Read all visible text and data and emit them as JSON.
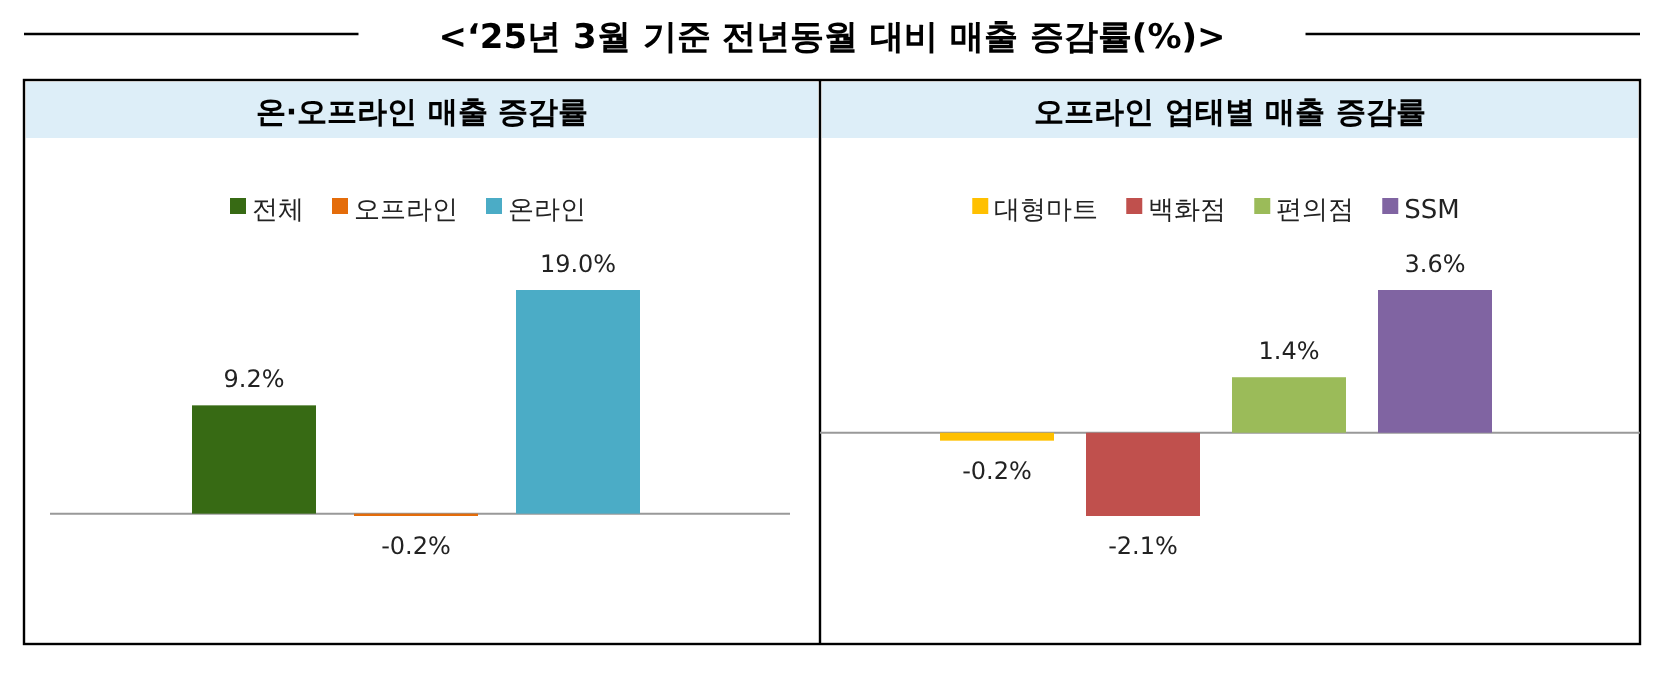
{
  "chart_data": [
    {
      "type": "other",
      "title": "<‘25년 3월 기준 전년동월 대비 매출 증감률(%)>"
    },
    {
      "type": "bar",
      "title": "온·오프라인 매출 증감률",
      "categories": [
        null
      ],
      "legend": "top",
      "series": [
        {
          "name": "전체",
          "color": "#376a14",
          "values": [
            9.2
          ],
          "value_labels": [
            "9.2%"
          ]
        },
        {
          "name": "오프라인",
          "color": "#e46c0a",
          "values": [
            -0.2
          ],
          "value_labels": [
            "-0.2%"
          ]
        },
        {
          "name": "온라인",
          "color": "#4bacc6",
          "values": [
            19.0
          ],
          "value_labels": [
            "19.0%"
          ]
        }
      ]
    },
    {
      "type": "bar",
      "title": "오프라인 업태별 매출 증감률",
      "categories": [
        null
      ],
      "legend": "top",
      "series": [
        {
          "name": "대형마트",
          "color": "#ffc000",
          "values": [
            -0.2
          ],
          "value_labels": [
            "-0.2%"
          ]
        },
        {
          "name": "백화점",
          "color": "#c0504d",
          "values": [
            -2.1
          ],
          "value_labels": [
            "-2.1%"
          ]
        },
        {
          "name": "편의점",
          "color": "#9bbb59",
          "values": [
            1.4
          ],
          "value_labels": [
            "1.4%"
          ]
        },
        {
          "name": "SSM",
          "color": "#8064a2",
          "values": [
            3.6
          ],
          "value_labels": [
            "3.6%"
          ]
        }
      ]
    }
  ]
}
